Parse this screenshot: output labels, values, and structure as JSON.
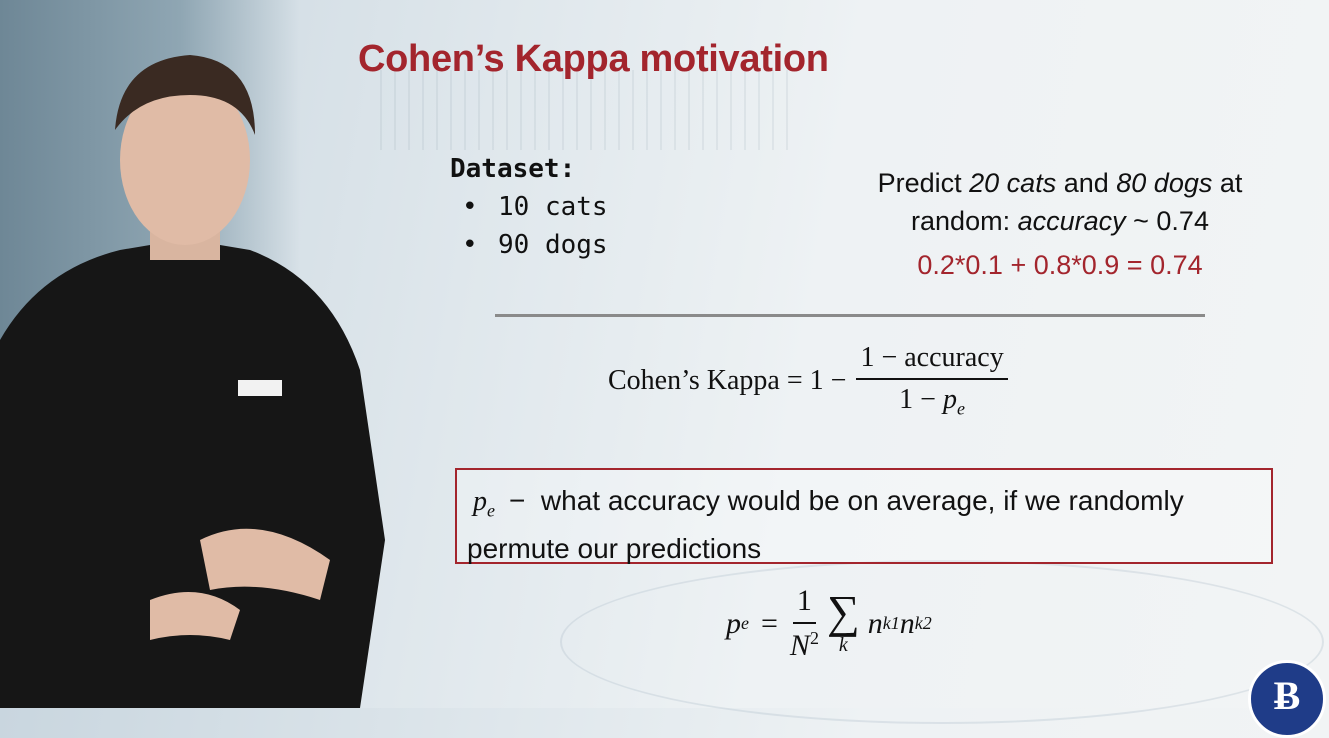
{
  "slide": {
    "title": "Cohen’s Kappa motivation",
    "dataset": {
      "header": "Dataset:",
      "items": [
        "10 cats",
        "90 dogs"
      ]
    },
    "predict": {
      "t1": "Predict ",
      "cats": "20 cats",
      "t2": " and ",
      "dogs": "80 dogs",
      "t3": " at random: ",
      "acc_word": "accuracy",
      "t4": " ~ 0.74",
      "calc": "0.2*0.1 + 0.8*0.9 = 0.74"
    },
    "kappa": {
      "lhs": "Cohen’s Kappa = 1 −",
      "num": "1 − accuracy",
      "den_prefix": "1 − ",
      "den_var": "p",
      "den_sub": "e"
    },
    "box": {
      "var": "p",
      "sub": "e",
      "dash": "−",
      "text": "what accuracy would be on average, if we randomly permute our predictions"
    },
    "pe_formula": {
      "lhs_var": "p",
      "lhs_sub": "e",
      "eq": "=",
      "num": "1",
      "den": "N",
      "den_sup": "2",
      "sigma": "∑",
      "sum_index": "k",
      "term1": "n",
      "term1_sub": "k1",
      "term2": "n",
      "term2_sub": "k2"
    },
    "logo_letter": "Ƀ"
  },
  "colors": {
    "accent": "#a3252d",
    "logo": "#1f3c88"
  }
}
